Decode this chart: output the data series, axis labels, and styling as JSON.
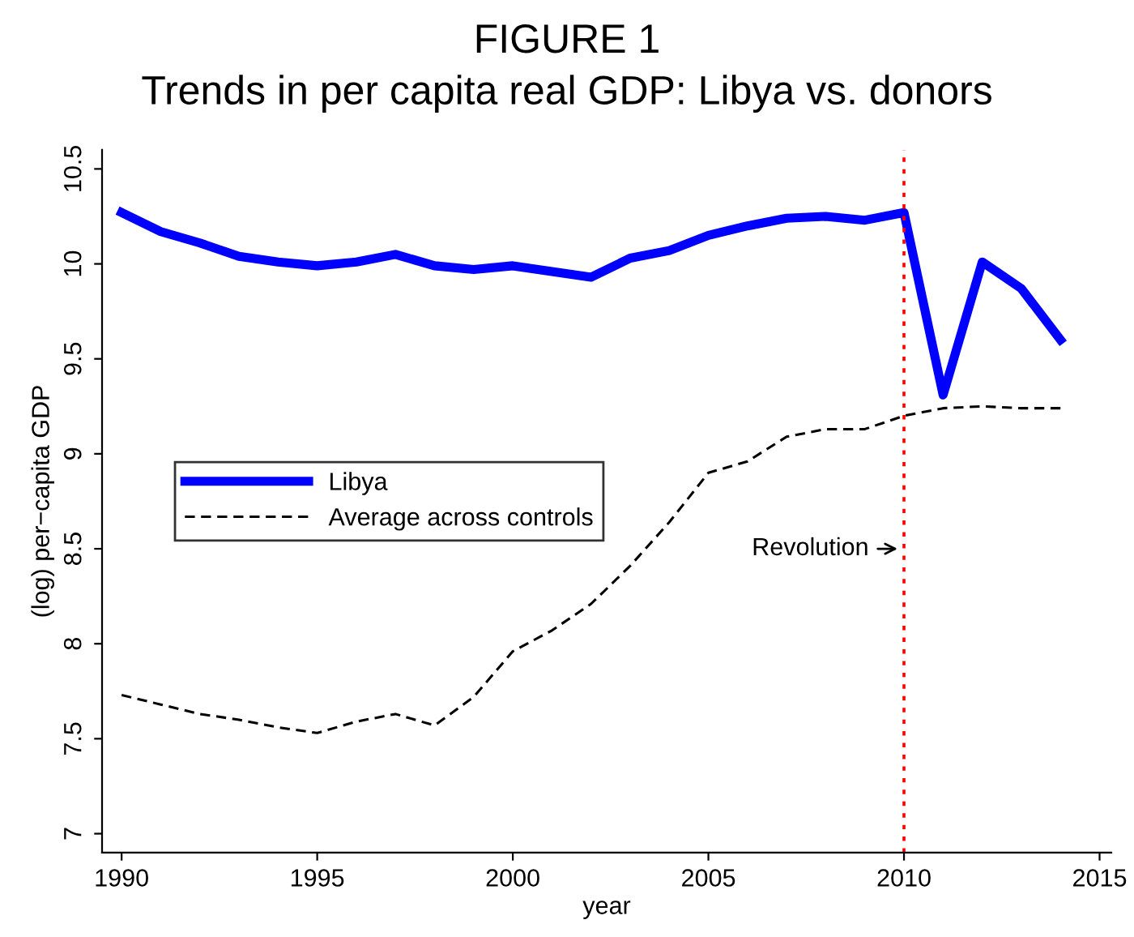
{
  "chart_data": {
    "type": "line",
    "title": "FIGURE 1",
    "subtitle": "Trends in per capita real GDP: Libya vs. donors",
    "xlabel": "year",
    "ylabel": "(log) per−capita GDP",
    "x": [
      1990,
      1991,
      1992,
      1993,
      1994,
      1995,
      1996,
      1997,
      1998,
      1999,
      2000,
      2001,
      2002,
      2003,
      2004,
      2005,
      2006,
      2007,
      2008,
      2009,
      2010,
      2011,
      2012,
      2013,
      2014
    ],
    "series": [
      {
        "name": "Libya",
        "color": "#0000ff",
        "line_style": "solid",
        "values": [
          10.27,
          10.17,
          10.11,
          10.04,
          10.01,
          9.99,
          10.01,
          10.05,
          9.99,
          9.97,
          9.99,
          9.96,
          9.93,
          10.03,
          10.07,
          10.15,
          10.2,
          10.24,
          10.25,
          10.23,
          10.27,
          9.31,
          10.01,
          9.87,
          9.6
        ]
      },
      {
        "name": "Average across controls",
        "color": "#000000",
        "line_style": "dashed",
        "values": [
          7.73,
          7.68,
          7.63,
          7.6,
          7.56,
          7.53,
          7.59,
          7.63,
          7.57,
          7.72,
          7.96,
          8.07,
          8.21,
          8.41,
          8.64,
          8.9,
          8.96,
          9.09,
          9.13,
          9.13,
          9.2,
          9.24,
          9.25,
          9.24,
          9.24
        ]
      }
    ],
    "xlim": [
      1989.5,
      2015.3
    ],
    "xticks": [
      1990,
      1995,
      2000,
      2005,
      2010,
      2015
    ],
    "ylim": [
      6.9,
      10.6
    ],
    "yticks": [
      7,
      7.5,
      8,
      8.5,
      9,
      9.5,
      10,
      10.5
    ],
    "ref_lines": [
      {
        "axis": "x",
        "value": 2010,
        "label": "Revolution",
        "color": "#ff0000",
        "line_style": "dotted"
      }
    ],
    "grid": false,
    "legend": "left",
    "marker": "none"
  }
}
